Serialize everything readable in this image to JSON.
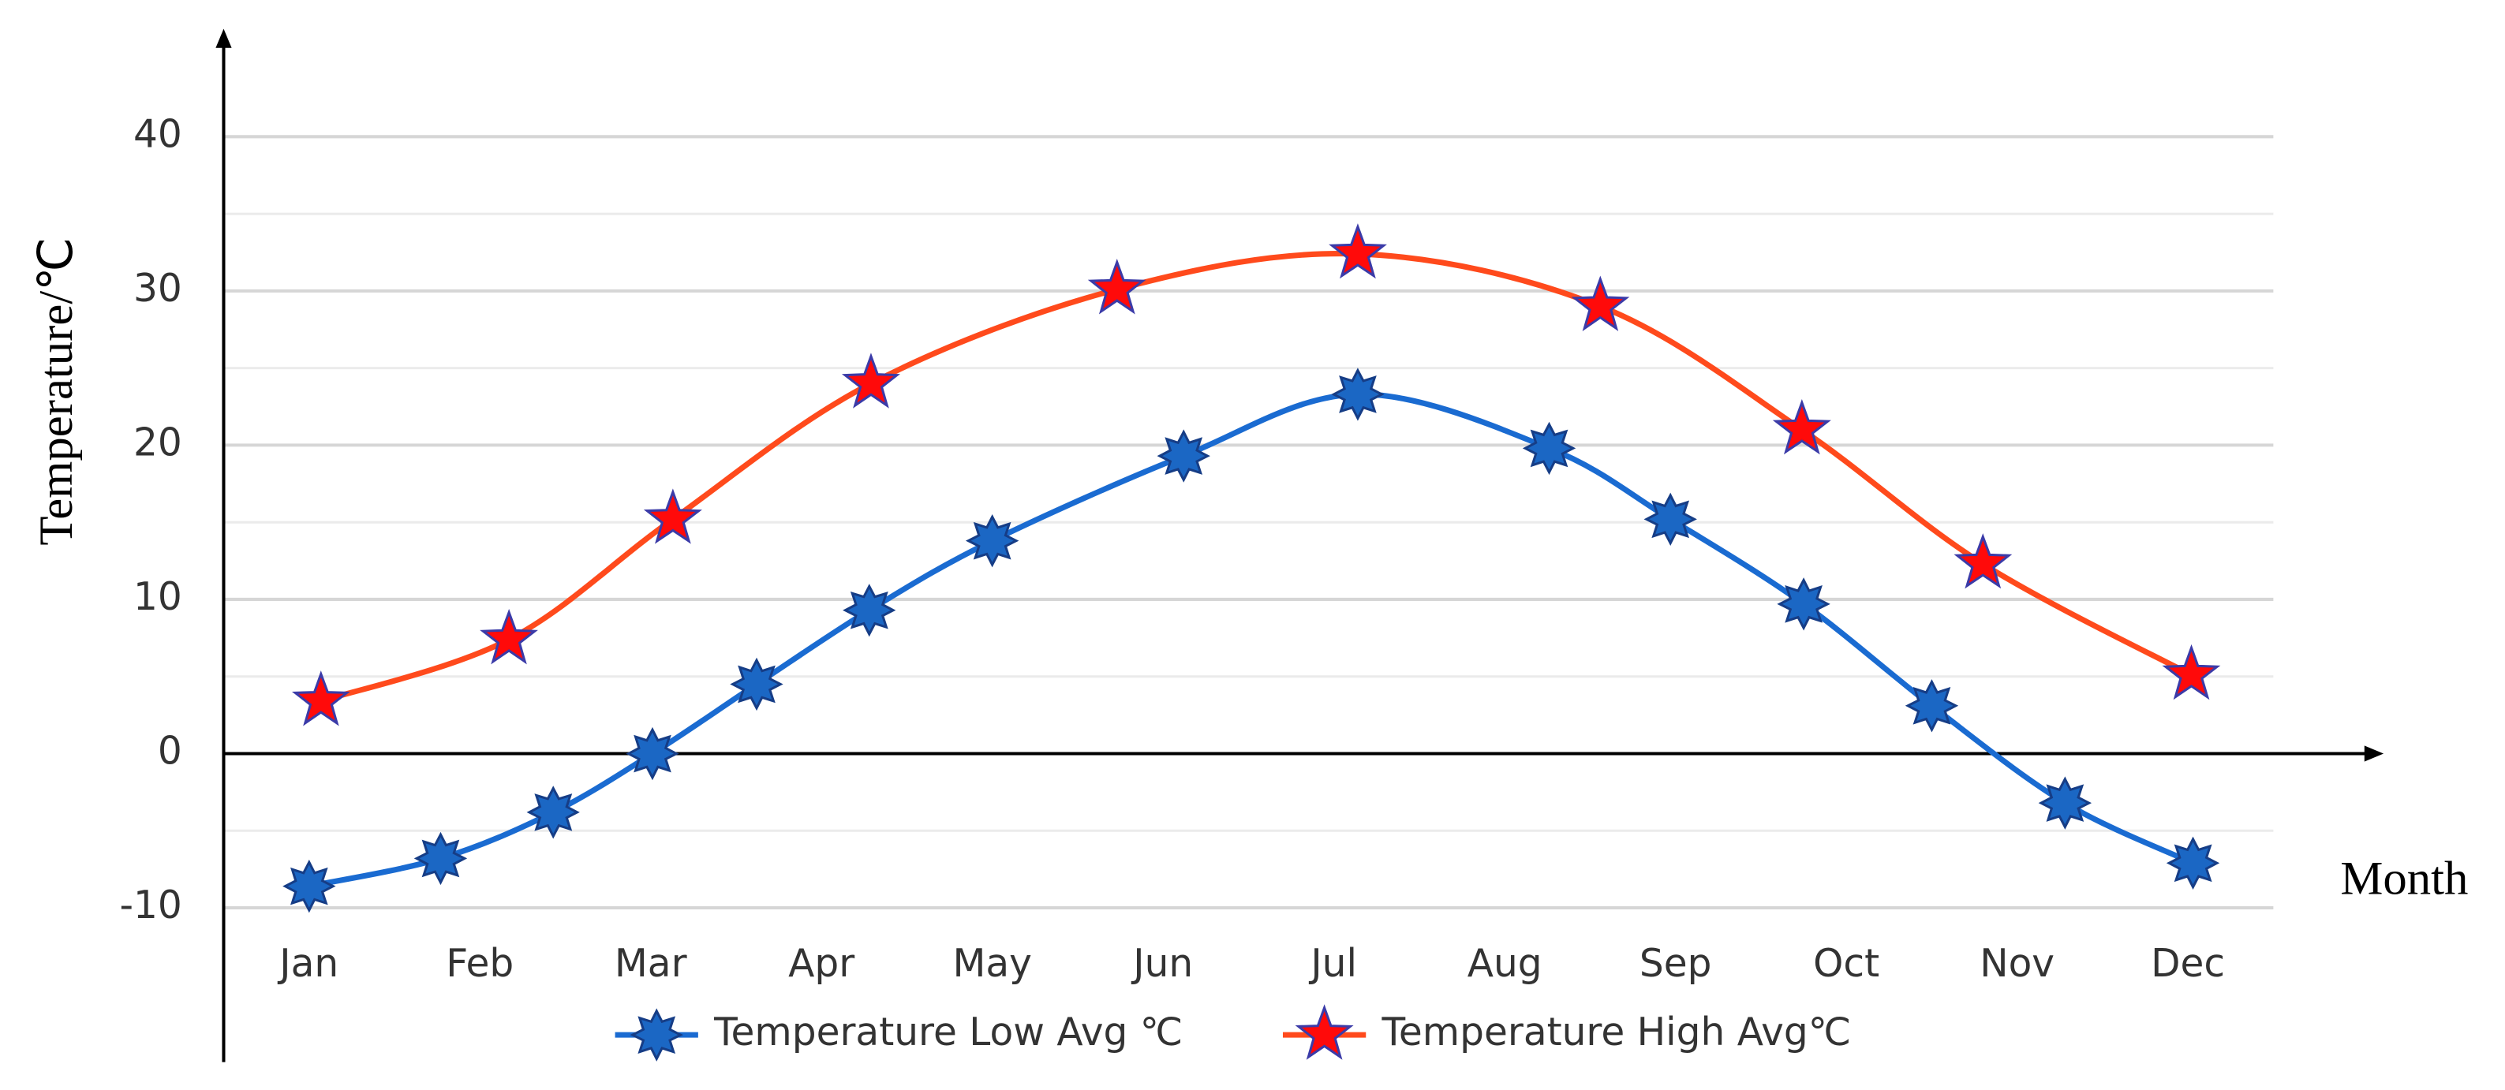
{
  "chart_data": {
    "type": "line",
    "x_label": "Month",
    "y_label": "Temperature/℃",
    "xlim": [
      0.5,
      12.5
    ],
    "ylim": [
      -20,
      47
    ],
    "xticks": [
      {
        "value": 1,
        "label": "Jan"
      },
      {
        "value": 2,
        "label": "Feb"
      },
      {
        "value": 3,
        "label": "Mar"
      },
      {
        "value": 4,
        "label": "Apr"
      },
      {
        "value": 5,
        "label": "May"
      },
      {
        "value": 6,
        "label": "Jun"
      },
      {
        "value": 7,
        "label": "Jul"
      },
      {
        "value": 8,
        "label": "Aug"
      },
      {
        "value": 9,
        "label": "Sep"
      },
      {
        "value": 10,
        "label": "Oct"
      },
      {
        "value": 11,
        "label": "Nov"
      },
      {
        "value": 12,
        "label": "Dec"
      }
    ],
    "yticks": [
      -10,
      0,
      10,
      20,
      30,
      40
    ],
    "minor_yticks": [
      -5,
      5,
      15,
      25,
      35
    ],
    "grid": true,
    "smooth": true,
    "legend": "bottom",
    "series": [
      {
        "name": "Temperature Low Avg ℃",
        "color": "#1a6bd1",
        "marker": "burst",
        "x": [
          1.0,
          1.77,
          2.43,
          3.01,
          3.62,
          4.28,
          5.0,
          6.12,
          7.14,
          8.26,
          8.97,
          9.75,
          10.5,
          11.28,
          12.03
        ],
        "values": [
          -8.6,
          -6.8,
          -3.8,
          0,
          4.5,
          9.3,
          13.8,
          19.3,
          23.3,
          19.8,
          15.2,
          9.7,
          3.1,
          -3.2,
          -7.1
        ]
      },
      {
        "name": "Temperature High Avg℃",
        "color": "#ff4a1c",
        "marker": "star",
        "x": [
          1.07,
          2.17,
          3.13,
          4.29,
          5.73,
          7.14,
          8.56,
          9.74,
          10.8,
          12.02
        ],
        "values": [
          3.4,
          7.4,
          15.2,
          24.0,
          30.1,
          32.4,
          29.0,
          21.0,
          12.3,
          5.1
        ]
      }
    ]
  }
}
